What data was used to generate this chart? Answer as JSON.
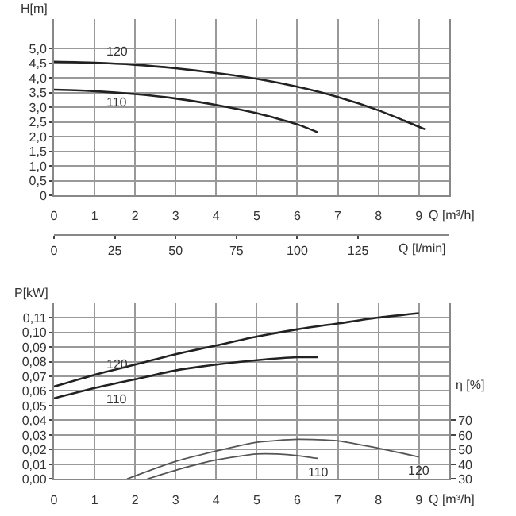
{
  "chart_data": [
    {
      "type": "line",
      "xlabel": "Q [m³/h]",
      "ylabel": "H[m]",
      "x2label": "Q [l/min]",
      "grid": true,
      "marker": "none",
      "line_style": "solid",
      "xlim": [
        0,
        9.75
      ],
      "xticks": [
        0,
        1,
        2,
        3,
        4,
        5,
        6,
        7,
        8,
        9
      ],
      "x2lim": [
        0,
        162.5
      ],
      "x2ticks": [
        0,
        25,
        50,
        75,
        100,
        125
      ],
      "ylim": [
        0,
        6
      ],
      "yticks": [
        0,
        {
          "value": 0.5,
          "label": "0,5"
        },
        {
          "value": 1,
          "label": "1,0"
        },
        {
          "value": 1.5,
          "label": "1,5"
        },
        {
          "value": 2,
          "label": "2,0"
        },
        {
          "value": 2.5,
          "label": "2,5"
        },
        {
          "value": 3,
          "label": "3,0"
        },
        {
          "value": 3.5,
          "label": "3,5"
        },
        {
          "value": 4,
          "label": "4,0"
        },
        {
          "value": 4.5,
          "label": "4,5"
        },
        {
          "value": 5,
          "label": "5,0"
        }
      ],
      "series": [
        {
          "name": "120",
          "color": "#222222",
          "x": [
            0,
            1,
            2,
            3,
            4,
            5,
            6,
            7,
            8,
            9.15
          ],
          "values": [
            4.55,
            4.52,
            4.45,
            4.33,
            4.17,
            3.97,
            3.7,
            3.35,
            2.9,
            2.25
          ]
        },
        {
          "name": "110",
          "color": "#222222",
          "x": [
            0,
            1,
            2,
            3,
            4,
            5,
            6,
            6.5
          ],
          "values": [
            3.6,
            3.55,
            3.45,
            3.3,
            3.08,
            2.8,
            2.42,
            2.15
          ]
        }
      ]
    },
    {
      "type": "line",
      "xlabel": "Q [m³/h]",
      "ylabel": "P[kW]",
      "y2label": "η [%]",
      "grid": true,
      "marker": "none",
      "line_style": "solid",
      "xlim": [
        0,
        9.75
      ],
      "xticks": [
        0,
        1,
        2,
        3,
        4,
        5,
        6,
        7,
        8,
        9
      ],
      "ylim": [
        0,
        0.12
      ],
      "yticks": [
        {
          "value": 0,
          "label": "0,00"
        },
        {
          "value": 0.01,
          "label": "0,01"
        },
        {
          "value": 0.02,
          "label": "0,02"
        },
        {
          "value": 0.03,
          "label": "0,03"
        },
        {
          "value": 0.04,
          "label": "0,04"
        },
        {
          "value": 0.05,
          "label": "0,05"
        },
        {
          "value": 0.06,
          "label": "0,06"
        },
        {
          "value": 0.07,
          "label": "0,07"
        },
        {
          "value": 0.08,
          "label": "0,08"
        },
        {
          "value": 0.09,
          "label": "0,09"
        },
        {
          "value": 0.1,
          "label": "0,10"
        },
        {
          "value": 0.11,
          "label": "0,11"
        }
      ],
      "y2lim": [
        30,
        150
      ],
      "y2ticks": [
        30,
        40,
        50,
        60,
        70
      ],
      "series": [
        {
          "name": "120",
          "color": "#222222",
          "x": [
            0,
            1,
            2,
            3,
            4,
            5,
            6,
            7,
            8,
            9
          ],
          "values": [
            0.063,
            0.071,
            0.078,
            0.085,
            0.091,
            0.097,
            0.102,
            0.106,
            0.11,
            0.113
          ]
        },
        {
          "name": "110",
          "color": "#222222",
          "x": [
            0,
            1,
            2,
            3,
            4,
            5,
            6,
            6.5
          ],
          "values": [
            0.055,
            0.062,
            0.068,
            0.074,
            0.078,
            0.081,
            0.083,
            0.083
          ]
        },
        {
          "name": "120",
          "color": "#555555",
          "axis": "y2",
          "x": [
            1.8,
            3,
            4,
            5,
            6,
            7,
            8,
            9
          ],
          "values": [
            30,
            42,
            49,
            55,
            57,
            56,
            51,
            45
          ]
        },
        {
          "name": "110",
          "color": "#555555",
          "axis": "y2",
          "x": [
            2.3,
            3,
            4,
            5,
            5.5,
            6,
            6.5
          ],
          "values": [
            30,
            36,
            43,
            47,
            47,
            46,
            44
          ]
        }
      ]
    }
  ]
}
